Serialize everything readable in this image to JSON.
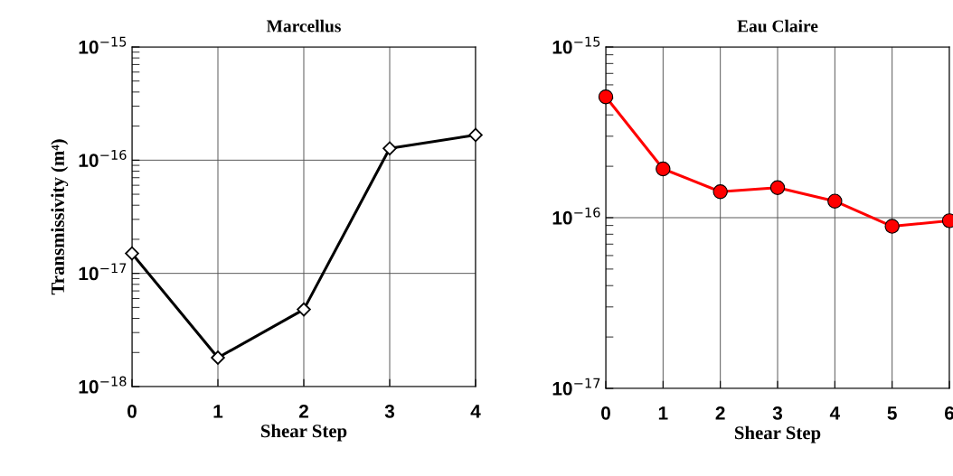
{
  "chart_data": [
    {
      "type": "line",
      "title": "Marcellus",
      "xlabel": "Shear Step",
      "ylabel": "Transmissivity (m⁴)",
      "log": "y",
      "grid": true,
      "marker": "diamond",
      "line_style": "solid",
      "x": [
        0,
        1,
        2,
        3,
        4
      ],
      "xlim": [
        0,
        4
      ],
      "xticks": [
        0,
        1,
        2,
        3,
        4
      ],
      "ylim": [
        1e-18,
        1e-15
      ],
      "yticks": [
        {
          "value": 1e-18,
          "label": "10$^{−18}$"
        },
        {
          "value": 1e-17,
          "label": "10$^{−17}$"
        },
        {
          "value": 1e-16,
          "label": "10$^{−16}$"
        },
        {
          "value": 1e-15,
          "label": "10$^{−15}$"
        }
      ],
      "series": [
        {
          "color": "#000000",
          "values": [
            1.5e-17,
            1.8e-18,
            4.8e-18,
            1.27e-16,
            1.67e-16
          ]
        }
      ]
    },
    {
      "type": "line",
      "title": "Eau Claire",
      "xlabel": "Shear Step",
      "log": "y",
      "grid": true,
      "marker": "circle",
      "line_style": "solid",
      "x": [
        0,
        1,
        2,
        3,
        4,
        5,
        6
      ],
      "xlim": [
        0,
        6
      ],
      "xticks": [
        0,
        1,
        2,
        3,
        4,
        5,
        6
      ],
      "ylim": [
        1e-17,
        1e-15
      ],
      "yticks": [
        {
          "value": 1e-17,
          "label": "10$^{−17}$"
        },
        {
          "value": 1e-16,
          "label": "10$^{−16}$"
        },
        {
          "value": 1e-15,
          "label": "10$^{−15}$"
        }
      ],
      "series": [
        {
          "color": "#ff0000",
          "values": [
            5.1e-16,
            1.93e-16,
            1.42e-16,
            1.5e-16,
            1.25e-16,
            8.9e-17,
            9.6e-17
          ]
        }
      ]
    }
  ]
}
